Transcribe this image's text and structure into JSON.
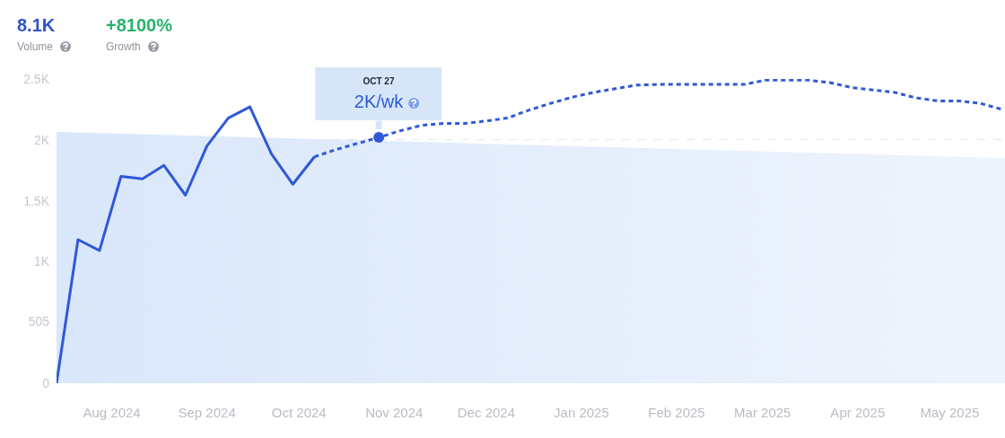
{
  "chart_data": {
    "type": "line",
    "annotations": [
      "8.1K",
      "Volume",
      "+8100%",
      "Growth",
      {
        "text": "OCT 27\n2K/wk",
        "x": "2024-10-27",
        "y": 2020
      }
    ],
    "xlim": [
      "2024-07-14",
      "2025-05-19"
    ],
    "xticks": [
      {
        "value": "2024-08-01",
        "label": "Aug 2024"
      },
      {
        "value": "2024-09-01",
        "label": "Sep 2024"
      },
      {
        "value": "2024-10-01",
        "label": "Oct 2024"
      },
      {
        "value": "2024-11-01",
        "label": "Nov 2024"
      },
      {
        "value": "2024-12-01",
        "label": "Dec 2024"
      },
      {
        "value": "2025-01-01",
        "label": "Jan 2025"
      },
      {
        "value": "2025-02-01",
        "label": "Feb 2025"
      },
      {
        "value": "2025-03-01",
        "label": "Mar 2025"
      },
      {
        "value": "2025-04-01",
        "label": "Apr 2025"
      },
      {
        "value": "2025-05-01",
        "label": "May 2025"
      }
    ],
    "ylim": [
      0,
      2500
    ],
    "yticks": [
      0,
      505,
      {
        "value": 1000,
        "label": "1K"
      },
      {
        "value": 1500,
        "label": "1.5K"
      },
      {
        "value": 2000,
        "label": "2K"
      },
      {
        "value": 2500,
        "label": "2.5K"
      }
    ],
    "grid": "y",
    "series": [
      {
        "type": "area",
        "color": "#d9e7fa",
        "x": [
          "2024-07-14",
          "2025-05-19"
        ],
        "values": [
          2065,
          1850
        ]
      },
      {
        "color": "#2f59d6",
        "line_style": "solid",
        "x": [
          "2024-07-14",
          "2024-07-21",
          "2024-07-28",
          "2024-08-04",
          "2024-08-11",
          "2024-08-18",
          "2024-08-25",
          "2024-09-01",
          "2024-09-08",
          "2024-09-15",
          "2024-09-22",
          "2024-09-29",
          "2024-10-06"
        ],
        "values": [
          0,
          1180,
          1090,
          1700,
          1680,
          1790,
          1545,
          1950,
          2180,
          2270,
          1885,
          1635,
          1860
        ]
      },
      {
        "color": "#2f59d6",
        "line_style": "dotted",
        "x": [
          "2024-10-06",
          "2024-10-13",
          "2024-10-20",
          "2024-10-27",
          "2024-11-03",
          "2024-11-10",
          "2024-11-17",
          "2024-11-24",
          "2024-12-01",
          "2024-12-08",
          "2024-12-15",
          "2024-12-22",
          "2024-12-29",
          "2025-01-05",
          "2025-01-12",
          "2025-01-19",
          "2025-01-26",
          "2025-02-02",
          "2025-02-09",
          "2025-02-16",
          "2025-02-23",
          "2025-03-02",
          "2025-03-09",
          "2025-03-16",
          "2025-03-23",
          "2025-03-30",
          "2025-04-06",
          "2025-04-13",
          "2025-04-20",
          "2025-04-27",
          "2025-05-04",
          "2025-05-11",
          "2025-05-18"
        ],
        "values": [
          1860,
          1920,
          1970,
          2020,
          2075,
          2120,
          2135,
          2135,
          2155,
          2180,
          2245,
          2300,
          2350,
          2390,
          2420,
          2450,
          2455,
          2455,
          2455,
          2455,
          2455,
          2490,
          2490,
          2490,
          2470,
          2430,
          2410,
          2390,
          2345,
          2320,
          2320,
          2300,
          2250
        ]
      },
      {
        "type": "scatter",
        "color": "#2f59d6",
        "marker": "circle",
        "x": [
          "2024-10-27"
        ],
        "values": [
          2020
        ]
      }
    ]
  }
}
